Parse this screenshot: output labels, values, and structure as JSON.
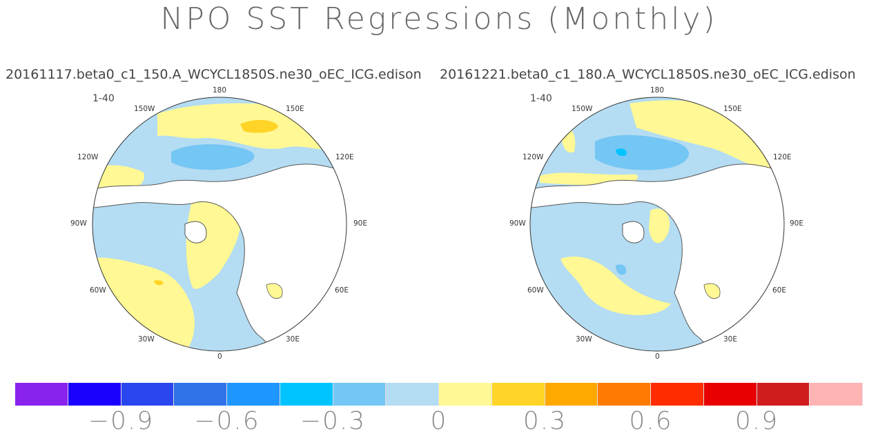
{
  "title": "NPO SST Regressions (Monthly)",
  "panels": [
    {
      "subtitle": "20161117.beta0_c1_150.A_WCYCL1850S.ne30_oEC_ICG.edison",
      "period": "1-40",
      "labels": {
        "top": "180",
        "w150": "150W",
        "e150": "150E",
        "w120": "120W",
        "e120": "120E",
        "w90": "90W",
        "e90": "90E",
        "w60": "60W",
        "e60": "60E",
        "w30": "30W",
        "e30": "30E",
        "bottom": "0"
      }
    },
    {
      "subtitle": "20161221.beta0_c1_180.A_WCYCL1850S.ne30_oEC_ICG.edison",
      "period": "1-40",
      "labels": {
        "top": "180",
        "w150": "150W",
        "e150": "150E",
        "w120": "120W",
        "e120": "120E",
        "w90": "90W",
        "e90": "90E",
        "w60": "60W",
        "e60": "60E",
        "w30": "30W",
        "e30": "30E",
        "bottom": "0"
      }
    }
  ],
  "colorbar": {
    "colors": [
      "#8a22ee",
      "#1a00ff",
      "#2a46ee",
      "#3072e8",
      "#1e96ff",
      "#00c4ff",
      "#74c6f4",
      "#b4dcf2",
      "#fff894",
      "#ffd426",
      "#ffa800",
      "#ff7a00",
      "#ff2c00",
      "#e80000",
      "#d01c1c",
      "#ffb4b4"
    ],
    "ticks": [
      {
        "label": "−0.9",
        "value": -0.9
      },
      {
        "label": "−0.6",
        "value": -0.6
      },
      {
        "label": "−0.3",
        "value": -0.3
      },
      {
        "label": "0",
        "value": 0
      },
      {
        "label": "0.3",
        "value": 0.3
      },
      {
        "label": "0.6",
        "value": 0.6
      },
      {
        "label": "0.9",
        "value": 0.9
      }
    ]
  },
  "field_colors": {
    "pos_weak": "#fff894",
    "pos_mid": "#ffd426",
    "neg_weak": "#b4dcf2",
    "neg_mid": "#74c6f4",
    "neg_strong": "#00c4ff",
    "land": "#ffffff",
    "coast": "#555555"
  }
}
